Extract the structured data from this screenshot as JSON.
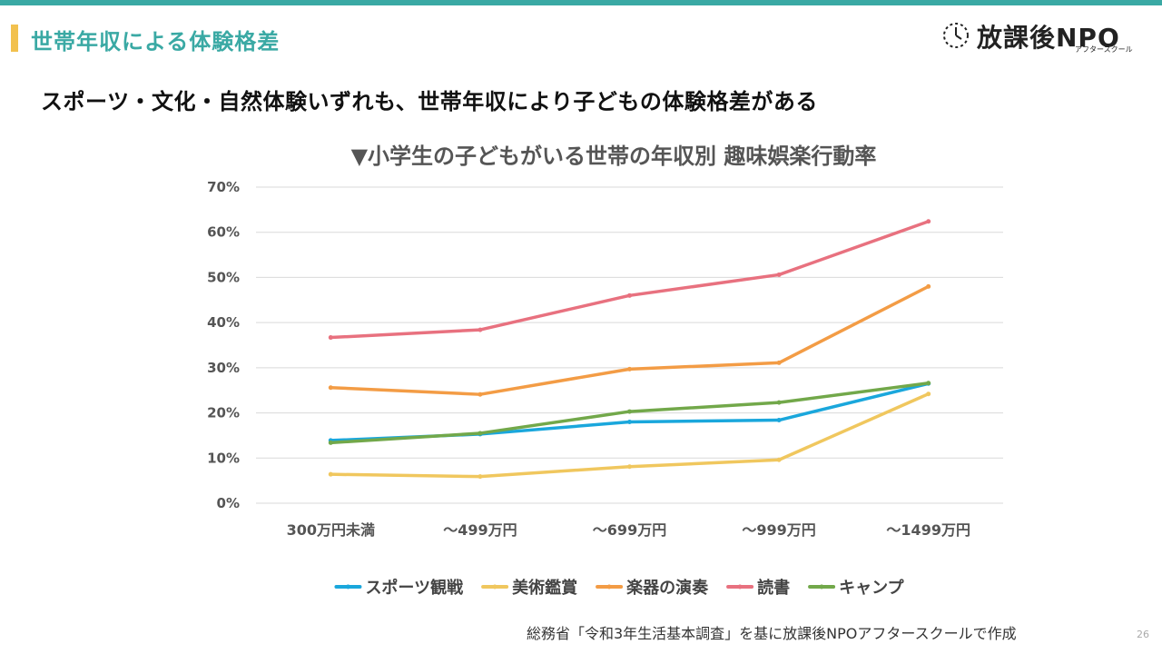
{
  "header": {
    "title": "世帯年収による体験格差",
    "accent_color": "#3aa9a4",
    "marker_color": "#f2c14e"
  },
  "logo": {
    "name": "放課後NPO",
    "sub": "アフタースクール",
    "icon": "clock-icon"
  },
  "headline": "スポーツ・文化・自然体験いずれも、世帯年収により子どもの体験格差がある",
  "chart_data": {
    "type": "line",
    "title": "▼小学生の子どもがいる世帯の年収別 趣味娯楽行動率",
    "categories": [
      "300万円未満",
      "～499万円",
      "～699万円",
      "～999万円",
      "～1499万円"
    ],
    "y_ticks": [
      "0%",
      "10%",
      "20%",
      "30%",
      "40%",
      "50%",
      "60%",
      "70%"
    ],
    "ylim": [
      0,
      70
    ],
    "unit": "%",
    "grid": true,
    "legend_position": "bottom",
    "series": [
      {
        "name": "スポーツ観戦",
        "color": "#1aa7dc",
        "values": [
          13.9,
          15.3,
          18.0,
          18.4,
          26.5
        ]
      },
      {
        "name": "美術鑑賞",
        "color": "#f0c75e",
        "values": [
          6.4,
          5.9,
          8.1,
          9.6,
          24.2
        ]
      },
      {
        "name": "楽器の演奏",
        "color": "#f39c45",
        "values": [
          25.6,
          24.1,
          29.7,
          31.1,
          48.0
        ]
      },
      {
        "name": "読書",
        "color": "#e8717f",
        "values": [
          36.7,
          38.4,
          46.0,
          50.6,
          62.4
        ]
      },
      {
        "name": "キャンプ",
        "color": "#72a84a",
        "values": [
          13.4,
          15.5,
          20.3,
          22.3,
          26.6
        ]
      }
    ]
  },
  "source": "総務省「令和3年生活基本調査」を基に放課後NPOアフタースクールで作成",
  "page_number": "26"
}
